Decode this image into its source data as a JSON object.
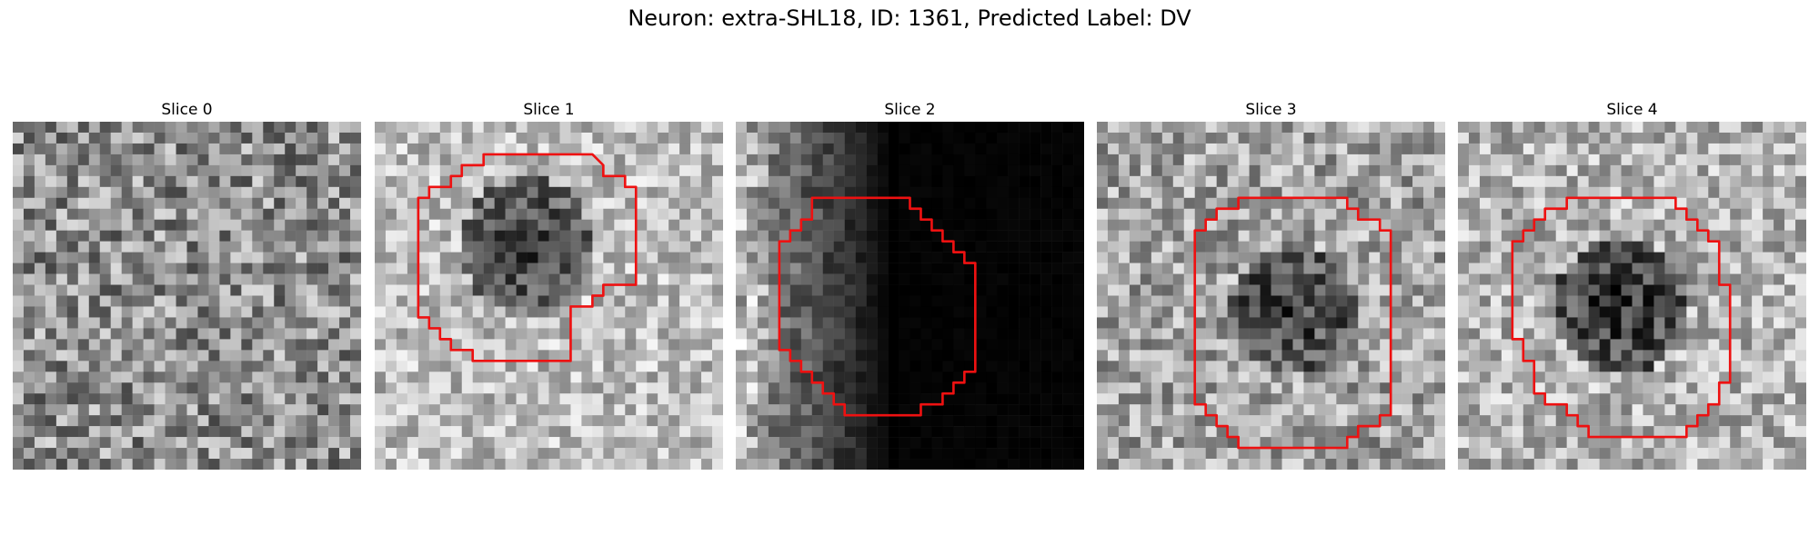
{
  "figure": {
    "title": "Neuron: extra-SHL18, ID: 1361, Predicted Label: DV",
    "contour_color": "#ee1111",
    "panels": [
      {
        "label": "Slice 0",
        "seed": 11,
        "brightness": 0.56,
        "spread": 0.3,
        "blob": 0.0,
        "left_dark": 0,
        "contour": null
      },
      {
        "label": "Slice 1",
        "seed": 23,
        "brightness": 0.74,
        "spread": 0.22,
        "blob": 0.5,
        "left_dark": 0,
        "contour": [
          [
            10,
            3
          ],
          [
            20,
            3
          ],
          [
            21,
            4
          ],
          [
            21,
            5
          ],
          [
            23,
            5
          ],
          [
            23,
            6
          ],
          [
            24,
            6
          ],
          [
            24,
            15
          ],
          [
            21,
            15
          ],
          [
            21,
            16
          ],
          [
            20,
            16
          ],
          [
            20,
            17
          ],
          [
            18,
            17
          ],
          [
            18,
            22
          ],
          [
            9,
            22
          ],
          [
            9,
            21
          ],
          [
            7,
            21
          ],
          [
            7,
            20
          ],
          [
            6,
            20
          ],
          [
            6,
            19
          ],
          [
            5,
            19
          ],
          [
            5,
            18
          ],
          [
            4,
            18
          ],
          [
            4,
            7
          ],
          [
            5,
            7
          ],
          [
            5,
            6
          ],
          [
            7,
            6
          ],
          [
            7,
            5
          ],
          [
            8,
            5
          ],
          [
            8,
            4
          ],
          [
            10,
            4
          ]
        ]
      },
      {
        "label": "Slice 2",
        "seed": 37,
        "brightness": 0.08,
        "spread": 0.05,
        "blob": 0.0,
        "left_dark": 1,
        "contour": [
          [
            7,
            7
          ],
          [
            16,
            7
          ],
          [
            16,
            8
          ],
          [
            17,
            8
          ],
          [
            17,
            9
          ],
          [
            18,
            9
          ],
          [
            18,
            10
          ],
          [
            19,
            10
          ],
          [
            19,
            11
          ],
          [
            20,
            11
          ],
          [
            20,
            12
          ],
          [
            21,
            12
          ],
          [
            21,
            13
          ],
          [
            22,
            13
          ],
          [
            22,
            23
          ],
          [
            21,
            23
          ],
          [
            21,
            24
          ],
          [
            20,
            24
          ],
          [
            20,
            25
          ],
          [
            19,
            25
          ],
          [
            19,
            26
          ],
          [
            17,
            26
          ],
          [
            17,
            27
          ],
          [
            10,
            27
          ],
          [
            10,
            26
          ],
          [
            9,
            26
          ],
          [
            9,
            25
          ],
          [
            8,
            25
          ],
          [
            8,
            24
          ],
          [
            7,
            24
          ],
          [
            7,
            23
          ],
          [
            6,
            23
          ],
          [
            6,
            22
          ],
          [
            5,
            22
          ],
          [
            5,
            21
          ],
          [
            4,
            21
          ],
          [
            4,
            11
          ],
          [
            5,
            11
          ],
          [
            5,
            10
          ],
          [
            6,
            10
          ],
          [
            6,
            9
          ],
          [
            7,
            9
          ]
        ]
      },
      {
        "label": "Slice 3",
        "seed": 51,
        "brightness": 0.64,
        "spread": 0.26,
        "blob": 0.42,
        "left_dark": 0,
        "contour": [
          [
            13,
            7
          ],
          [
            23,
            7
          ],
          [
            23,
            8
          ],
          [
            24,
            8
          ],
          [
            24,
            9
          ],
          [
            26,
            9
          ],
          [
            26,
            10
          ],
          [
            27,
            10
          ],
          [
            27,
            27
          ],
          [
            26,
            27
          ],
          [
            26,
            28
          ],
          [
            24,
            28
          ],
          [
            24,
            29
          ],
          [
            23,
            29
          ],
          [
            23,
            30
          ],
          [
            13,
            30
          ],
          [
            13,
            29
          ],
          [
            12,
            29
          ],
          [
            12,
            28
          ],
          [
            11,
            28
          ],
          [
            11,
            27
          ],
          [
            10,
            27
          ],
          [
            10,
            26
          ],
          [
            9,
            26
          ],
          [
            9,
            10
          ],
          [
            10,
            10
          ],
          [
            10,
            9
          ],
          [
            11,
            9
          ],
          [
            11,
            8
          ],
          [
            13,
            8
          ]
        ]
      },
      {
        "label": "Slice 4",
        "seed": 67,
        "brightness": 0.7,
        "spread": 0.24,
        "blob": 0.52,
        "left_dark": 0,
        "contour": [
          [
            10,
            7
          ],
          [
            20,
            7
          ],
          [
            20,
            8
          ],
          [
            21,
            8
          ],
          [
            21,
            9
          ],
          [
            22,
            9
          ],
          [
            22,
            10
          ],
          [
            23,
            10
          ],
          [
            23,
            11
          ],
          [
            24,
            11
          ],
          [
            24,
            15
          ],
          [
            25,
            15
          ],
          [
            25,
            24
          ],
          [
            24,
            24
          ],
          [
            24,
            26
          ],
          [
            23,
            26
          ],
          [
            23,
            27
          ],
          [
            22,
            27
          ],
          [
            22,
            28
          ],
          [
            21,
            28
          ],
          [
            21,
            29
          ],
          [
            12,
            29
          ],
          [
            12,
            28
          ],
          [
            11,
            28
          ],
          [
            11,
            27
          ],
          [
            10,
            27
          ],
          [
            10,
            26
          ],
          [
            8,
            26
          ],
          [
            8,
            25
          ],
          [
            7,
            25
          ],
          [
            7,
            22
          ],
          [
            6,
            22
          ],
          [
            6,
            20
          ],
          [
            5,
            20
          ],
          [
            5,
            11
          ],
          [
            6,
            11
          ],
          [
            6,
            10
          ],
          [
            7,
            10
          ],
          [
            7,
            9
          ],
          [
            8,
            9
          ],
          [
            8,
            8
          ],
          [
            10,
            8
          ]
        ]
      }
    ]
  }
}
